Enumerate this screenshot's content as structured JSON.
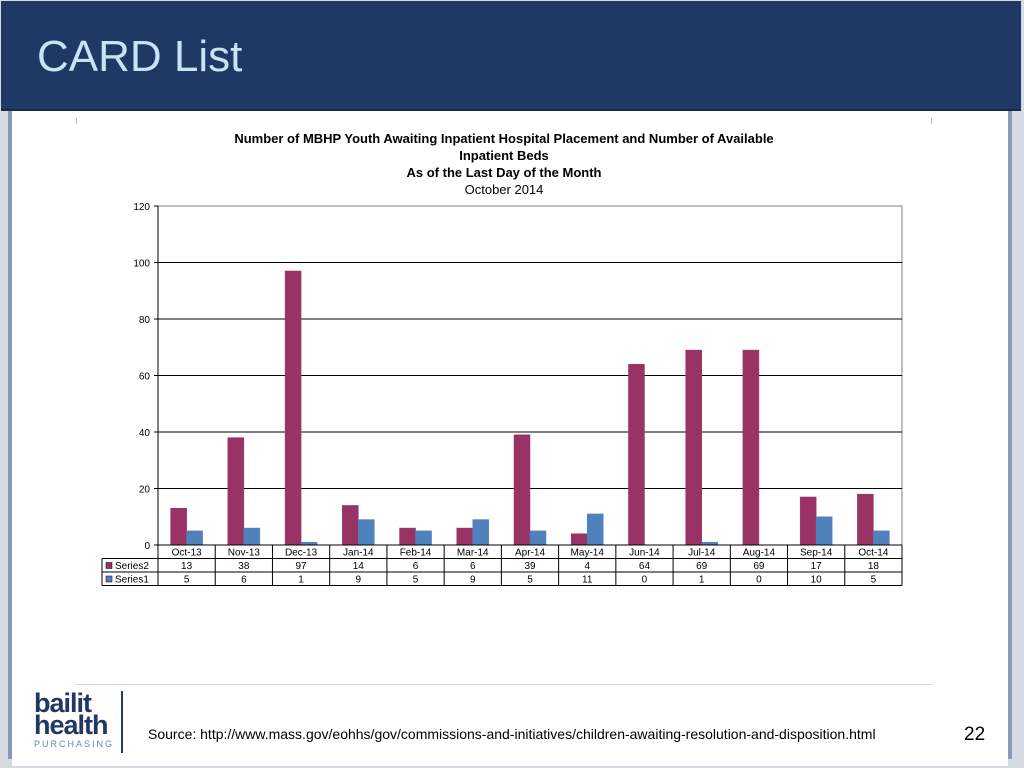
{
  "slide": {
    "title": "CARD List",
    "source": "Source: http://www.mass.gov/eohhs/gov/commissions-and-initiatives/children-awaiting-resolution-and-disposition.html",
    "page_number": "22",
    "logo": {
      "line1": "bailit",
      "line2": "health",
      "line3": "PURCHASING"
    }
  },
  "colors": {
    "title_bar": "#1f3864",
    "title_text": "#c9e3f5",
    "series2": "#993366",
    "series1": "#4f81bd"
  },
  "chart_data": {
    "type": "bar",
    "title_lines": [
      "Number of MBHP Youth Awaiting  Inpatient Hospital Placement  and Number of Available",
      "Inpatient  Beds",
      "As of the Last Day of the Month"
    ],
    "subtitle": "October  2014",
    "categories": [
      "Oct-13",
      "Nov-13",
      "Dec-13",
      "Jan-14",
      "Feb-14",
      "Mar-14",
      "Apr-14",
      "May-14",
      "Jun-14",
      "Jul-14",
      "Aug-14",
      "Sep-14",
      "Oct-14"
    ],
    "series": [
      {
        "name": "Series2",
        "color": "#993366",
        "values": [
          13,
          38,
          97,
          14,
          6,
          6,
          39,
          4,
          64,
          69,
          69,
          17,
          18
        ]
      },
      {
        "name": "Series1",
        "color": "#4f81bd",
        "values": [
          5,
          6,
          1,
          9,
          5,
          9,
          5,
          11,
          0,
          1,
          0,
          10,
          5
        ]
      }
    ],
    "ylim": [
      0,
      120
    ],
    "yticks": [
      0,
      20,
      40,
      60,
      80,
      100,
      120
    ],
    "grid": true,
    "legend": "data-table",
    "xlabel": "",
    "ylabel": ""
  }
}
